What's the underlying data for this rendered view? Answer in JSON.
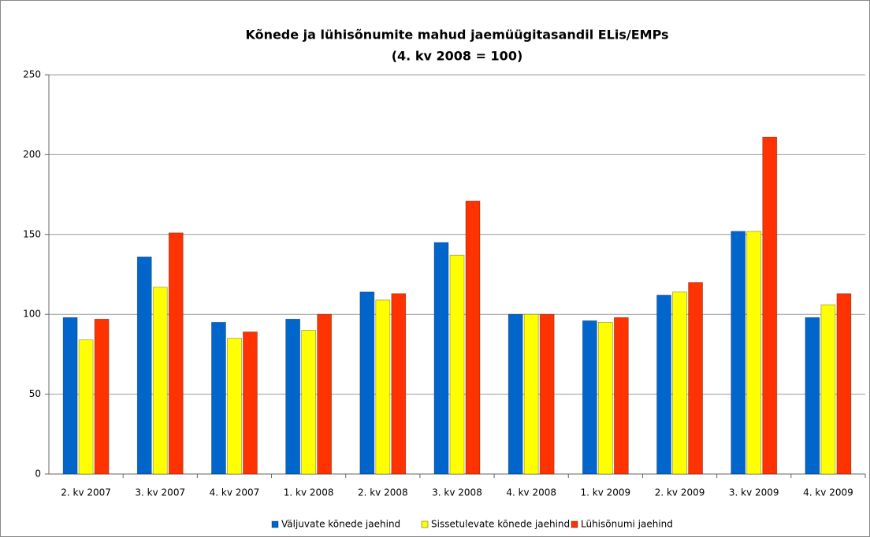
{
  "chart_data": {
    "type": "bar",
    "title": "Kõnede ja lühisõnumite mahud jaemüügitasandil ELis/EMPs",
    "subtitle": "(4. kv 2008 = 100)",
    "categories": [
      "2. kv 2007",
      "3. kv 2007",
      "4. kv 2007",
      "1. kv 2008",
      "2. kv 2008",
      "3. kv 2008",
      "4. kv 2008",
      "1. kv 2009",
      "2. kv 2009",
      "3. kv 2009",
      "4. kv 2009"
    ],
    "series": [
      {
        "name": "Väljuvate kõnede jaehind",
        "color": "#0066cc",
        "values": [
          98,
          136,
          95,
          97,
          114,
          145,
          100,
          96,
          112,
          152,
          98
        ]
      },
      {
        "name": "Sissetulevate kõnede jaehind",
        "color": "#ffff00",
        "values": [
          84,
          117,
          85,
          90,
          109,
          137,
          100,
          95,
          114,
          152,
          106
        ]
      },
      {
        "name": "Lühisõnumi jaehind",
        "color": "#ff3300",
        "values": [
          97,
          151,
          89,
          100,
          113,
          171,
          100,
          98,
          120,
          211,
          113
        ]
      }
    ],
    "ylim": [
      0,
      250
    ],
    "yticks": [
      0,
      50,
      100,
      150,
      200,
      250
    ],
    "grid": true,
    "legend": "bottom"
  }
}
